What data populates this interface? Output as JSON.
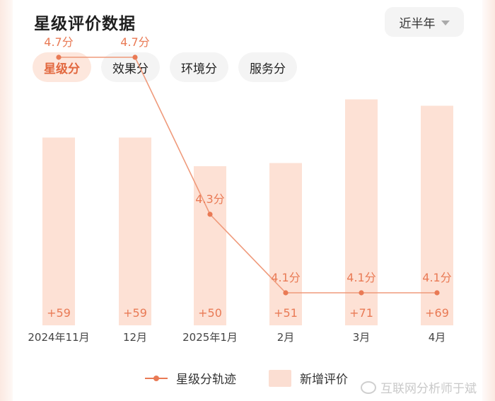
{
  "header": {
    "title": "星级评价数据",
    "period": "近半年"
  },
  "tabs": [
    {
      "label": "星级分",
      "active": true
    },
    {
      "label": "效果分",
      "active": false
    },
    {
      "label": "环境分",
      "active": false
    },
    {
      "label": "服务分",
      "active": false
    }
  ],
  "legend": {
    "line_label": "星级分轨迹",
    "bar_label": "新增评价"
  },
  "watermark": "互联网分析师于斌",
  "colors": {
    "accent": "#e97a55",
    "bar": "#fde1d5",
    "tab_active_bg": "#fde7dd"
  },
  "chart_data": {
    "type": "bar",
    "categories": [
      "2024年11月",
      "12月",
      "2025年1月",
      "2月",
      "3月",
      "4月"
    ],
    "series": [
      {
        "name": "新增评价",
        "type": "bar",
        "values": [
          59,
          59,
          50,
          51,
          71,
          69
        ],
        "labels": [
          "+59",
          "+59",
          "+50",
          "+51",
          "+71",
          "+69"
        ]
      },
      {
        "name": "星级分轨迹",
        "type": "line",
        "values": [
          4.7,
          4.7,
          4.3,
          4.1,
          4.1,
          4.1
        ],
        "labels": [
          "4.7分",
          "4.7分",
          "4.3分",
          "4.1分",
          "4.1分",
          "4.1分"
        ]
      }
    ]
  }
}
